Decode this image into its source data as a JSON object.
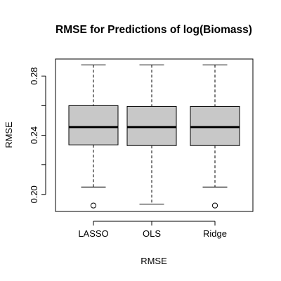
{
  "chart_data": {
    "type": "boxplot",
    "title": "RMSE for Predictions of log(Biomass)",
    "xlabel": "RMSE",
    "ylabel": "RMSE",
    "categories": [
      "LASSO",
      "OLS",
      "Ridge"
    ],
    "boxes": [
      {
        "name": "LASSO",
        "whisker_low": 0.205,
        "q1": 0.2335,
        "median": 0.2455,
        "q3": 0.26,
        "whisker_high": 0.2875,
        "outliers": [
          0.1925
        ]
      },
      {
        "name": "OLS",
        "whisker_low": 0.1935,
        "q1": 0.233,
        "median": 0.2455,
        "q3": 0.2595,
        "whisker_high": 0.2875,
        "outliers": []
      },
      {
        "name": "Ridge",
        "whisker_low": 0.205,
        "q1": 0.233,
        "median": 0.2455,
        "q3": 0.2595,
        "whisker_high": 0.2875,
        "outliers": [
          0.1925
        ]
      }
    ],
    "ylim": [
      0.1885,
      0.2915
    ],
    "yticks": [
      0.2,
      0.22,
      0.24,
      0.26,
      0.28
    ],
    "ytick_labels": [
      "0.20",
      "",
      "0.24",
      "",
      "0.28"
    ],
    "grid": false,
    "box_fill": "#c8c8c8",
    "box_stroke": "#000000"
  }
}
